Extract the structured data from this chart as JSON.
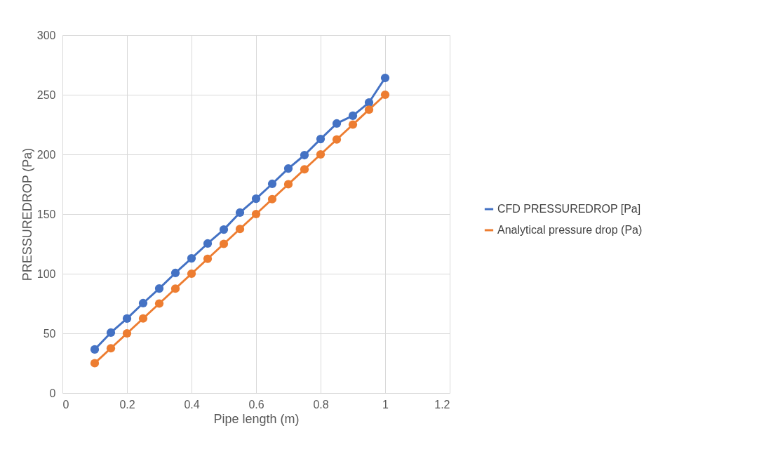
{
  "chart_data": {
    "type": "line",
    "xlabel": "Pipe length (m)",
    "ylabel": "PRESSUREDROP (Pa)",
    "x": [
      0.1,
      0.15,
      0.2,
      0.25,
      0.3,
      0.35,
      0.4,
      0.45,
      0.5,
      0.55,
      0.6,
      0.65,
      0.7,
      0.75,
      0.8,
      0.85,
      0.9,
      0.95,
      1.0
    ],
    "series": [
      {
        "name": "CFD PRESSUREDROP [Pa]",
        "color": "#4472c4",
        "values": [
          36.5,
          50.6,
          62.4,
          75.3,
          87.6,
          100.6,
          112.9,
          125.3,
          137,
          151.2,
          162.9,
          175.3,
          188.2,
          199.4,
          212.9,
          225.9,
          232.4,
          243.5,
          264.1
        ]
      },
      {
        "name": "Analytical pressure drop (Pa)",
        "color": "#ed7d31",
        "values": [
          25,
          37.5,
          50,
          62.5,
          75,
          87.5,
          100,
          112.5,
          125,
          137.5,
          150,
          162.5,
          175,
          187.5,
          200,
          212.5,
          225,
          237.5,
          250
        ]
      }
    ],
    "xlim": [
      0,
      1.2
    ],
    "xticks": [
      0,
      0.2,
      0.4,
      0.6,
      0.8,
      1,
      1.2
    ],
    "ylim": [
      0,
      300
    ],
    "yticks": [
      0,
      50,
      100,
      150,
      200,
      250,
      300
    ],
    "grid": true,
    "legend": "right",
    "marker": "circle",
    "line_style": "solid"
  }
}
